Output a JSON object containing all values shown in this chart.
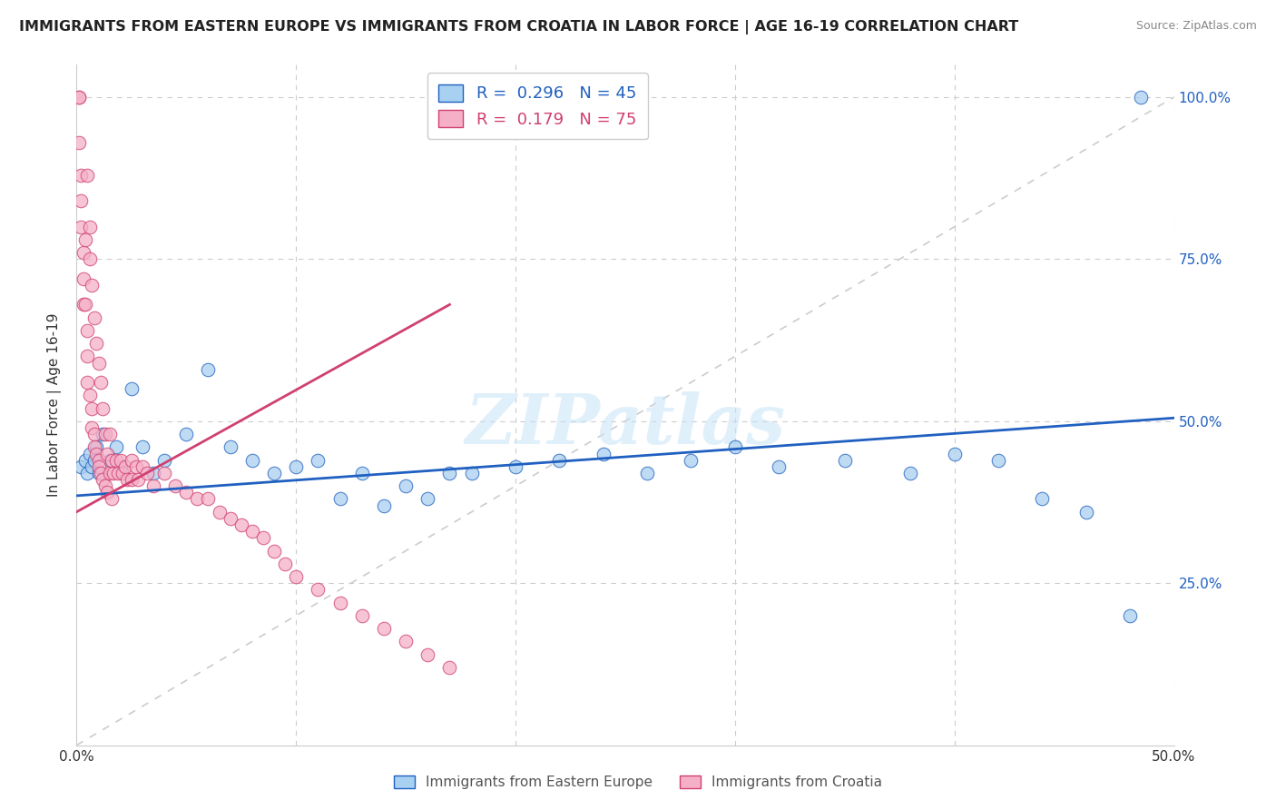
{
  "title": "IMMIGRANTS FROM EASTERN EUROPE VS IMMIGRANTS FROM CROATIA IN LABOR FORCE | AGE 16-19 CORRELATION CHART",
  "source": "Source: ZipAtlas.com",
  "ylabel": "In Labor Force | Age 16-19",
  "legend_label_blue": "Immigrants from Eastern Europe",
  "legend_label_pink": "Immigrants from Croatia",
  "R_blue": 0.296,
  "N_blue": 45,
  "R_pink": 0.179,
  "N_pink": 75,
  "color_blue": "#a8d0f0",
  "color_pink": "#f5b0c8",
  "trendline_blue": "#2060c0",
  "trendline_pink": "#d04070",
  "xlim": [
    0.0,
    0.5
  ],
  "ylim": [
    0.0,
    1.05
  ],
  "watermark": "ZIPatlas",
  "scatter_blue_x": [
    0.002,
    0.004,
    0.005,
    0.006,
    0.007,
    0.008,
    0.009,
    0.01,
    0.012,
    0.015,
    0.018,
    0.02,
    0.025,
    0.03,
    0.035,
    0.04,
    0.05,
    0.06,
    0.07,
    0.08,
    0.09,
    0.1,
    0.11,
    0.12,
    0.13,
    0.14,
    0.15,
    0.16,
    0.17,
    0.18,
    0.2,
    0.22,
    0.24,
    0.26,
    0.28,
    0.3,
    0.32,
    0.35,
    0.38,
    0.4,
    0.42,
    0.44,
    0.46,
    0.48,
    0.485
  ],
  "scatter_blue_y": [
    0.43,
    0.44,
    0.42,
    0.45,
    0.43,
    0.44,
    0.46,
    0.42,
    0.48,
    0.44,
    0.46,
    0.43,
    0.55,
    0.46,
    0.42,
    0.44,
    0.48,
    0.58,
    0.46,
    0.44,
    0.42,
    0.43,
    0.44,
    0.38,
    0.42,
    0.37,
    0.4,
    0.38,
    0.42,
    0.42,
    0.43,
    0.44,
    0.45,
    0.42,
    0.44,
    0.46,
    0.43,
    0.44,
    0.42,
    0.45,
    0.44,
    0.38,
    0.36,
    0.2,
    1.0
  ],
  "scatter_pink_x": [
    0.001,
    0.001,
    0.001,
    0.002,
    0.002,
    0.002,
    0.003,
    0.003,
    0.003,
    0.004,
    0.004,
    0.005,
    0.005,
    0.005,
    0.005,
    0.006,
    0.006,
    0.006,
    0.007,
    0.007,
    0.007,
    0.008,
    0.008,
    0.008,
    0.009,
    0.009,
    0.01,
    0.01,
    0.01,
    0.011,
    0.011,
    0.012,
    0.012,
    0.013,
    0.013,
    0.014,
    0.014,
    0.015,
    0.015,
    0.016,
    0.016,
    0.017,
    0.018,
    0.019,
    0.02,
    0.021,
    0.022,
    0.023,
    0.025,
    0.025,
    0.027,
    0.028,
    0.03,
    0.032,
    0.035,
    0.04,
    0.045,
    0.05,
    0.055,
    0.06,
    0.065,
    0.07,
    0.075,
    0.08,
    0.085,
    0.09,
    0.095,
    0.1,
    0.11,
    0.12,
    0.13,
    0.14,
    0.15,
    0.16,
    0.17
  ],
  "scatter_pink_y": [
    1.0,
    1.0,
    0.93,
    0.88,
    0.84,
    0.8,
    0.76,
    0.72,
    0.68,
    0.78,
    0.68,
    0.64,
    0.6,
    0.88,
    0.56,
    0.8,
    0.54,
    0.75,
    0.52,
    0.71,
    0.49,
    0.48,
    0.66,
    0.46,
    0.45,
    0.62,
    0.44,
    0.59,
    0.43,
    0.42,
    0.56,
    0.41,
    0.52,
    0.4,
    0.48,
    0.39,
    0.45,
    0.48,
    0.42,
    0.44,
    0.38,
    0.42,
    0.44,
    0.42,
    0.44,
    0.42,
    0.43,
    0.41,
    0.44,
    0.41,
    0.43,
    0.41,
    0.43,
    0.42,
    0.4,
    0.42,
    0.4,
    0.39,
    0.38,
    0.38,
    0.36,
    0.35,
    0.34,
    0.33,
    0.32,
    0.3,
    0.28,
    0.26,
    0.24,
    0.22,
    0.2,
    0.18,
    0.16,
    0.14,
    0.12
  ],
  "blue_trend_x0": 0.0,
  "blue_trend_y0": 0.385,
  "blue_trend_x1": 0.5,
  "blue_trend_y1": 0.505,
  "pink_trend_x0": 0.0,
  "pink_trend_y0": 0.36,
  "pink_trend_x1": 0.17,
  "pink_trend_y1": 0.68,
  "title_fontsize": 11.5,
  "axis_label_fontsize": 11,
  "tick_fontsize": 11
}
